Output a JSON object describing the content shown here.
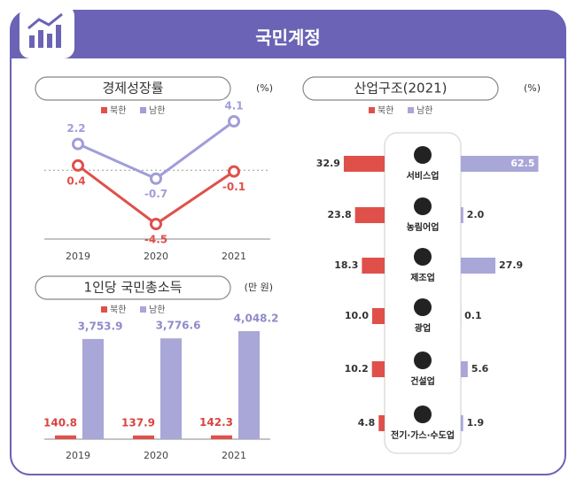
{
  "title": "국민계정",
  "chart_data": [
    {
      "type": "line",
      "title": "경제성장률",
      "unit": "(%)",
      "categories": [
        "2019",
        "2020",
        "2021"
      ],
      "series": [
        {
          "name": "북한",
          "color": "#e0504b",
          "values": [
            0.4,
            -4.5,
            -0.1
          ]
        },
        {
          "name": "남한",
          "color": "#a19dd8",
          "values": [
            2.2,
            -0.7,
            4.1
          ]
        }
      ]
    },
    {
      "type": "bar",
      "title": "1인당 국민총소득",
      "unit": "(만 원)",
      "categories": [
        "2019",
        "2020",
        "2021"
      ],
      "series": [
        {
          "name": "북한",
          "color": "#e0504b",
          "values": [
            140.8,
            137.9,
            142.3
          ]
        },
        {
          "name": "남한",
          "color": "#a9a6d8",
          "values": [
            3753.9,
            3776.6,
            4048.2
          ],
          "value_labels": [
            "3,753.9",
            "3,776.6",
            "4,048.2"
          ]
        }
      ]
    },
    {
      "type": "hbar",
      "title": "산업구조(2021)",
      "unit": "(%)",
      "categories": [
        "서비스업",
        "농림어업",
        "제조업",
        "광업",
        "건설업",
        "전기·가스·수도업"
      ],
      "series": [
        {
          "name": "북한",
          "color": "#e0504b",
          "values": [
            32.9,
            23.8,
            18.3,
            10.0,
            10.2,
            4.8
          ],
          "value_labels": [
            "32.9",
            "23.8",
            "18.3",
            "10.0",
            "10.2",
            "4.8"
          ]
        },
        {
          "name": "남한",
          "color": "#a9a6d8",
          "values": [
            62.5,
            2.0,
            27.9,
            0.1,
            5.6,
            1.9
          ],
          "value_labels": [
            "62.5",
            "2.0",
            "27.9",
            "0.1",
            "5.6",
            "1.9"
          ]
        }
      ]
    }
  ]
}
